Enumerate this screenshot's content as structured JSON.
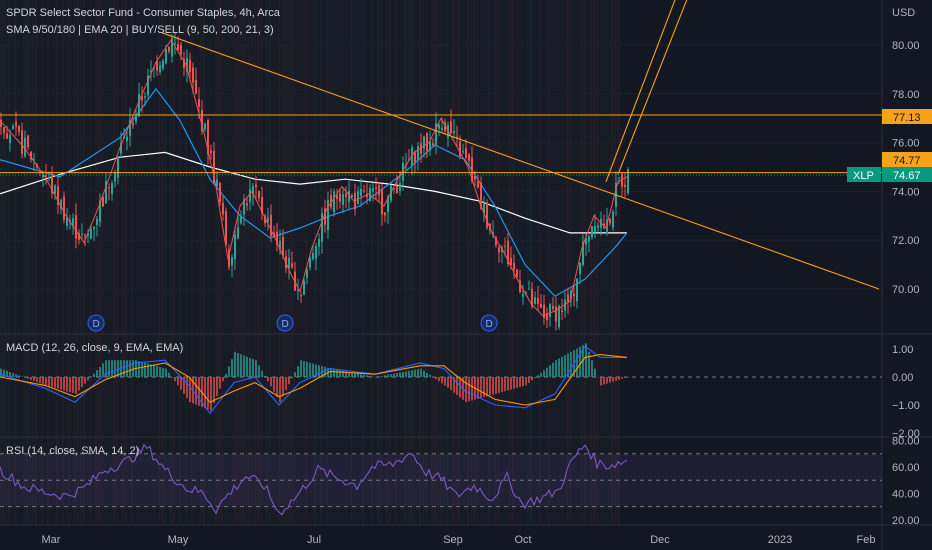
{
  "header": {
    "title": "SPDR Select Sector Fund - Consumer Staples, 4h, Arca",
    "indicators": "SMA 9/50/180 | EMA 20 | BUY/SELL (9, 50, 200, 21, 3)",
    "currency": "USD"
  },
  "price_pane": {
    "y_ticks": [
      "80.00",
      "78.00",
      "76.00",
      "74.00",
      "72.00",
      "70.00"
    ],
    "resistance_label": "77.13",
    "support_label": "74.77",
    "ticker_label": "XLP",
    "ticker_price": "74.67",
    "dividend_marker": "D"
  },
  "macd_pane": {
    "title": "MACD (12, 26, close, 9, EMA, EMA)",
    "y_ticks": [
      "1.00",
      "0.00",
      "−1.00",
      "−2.00"
    ]
  },
  "rsi_pane": {
    "title": "RSI (14, close, SMA, 14, 2)",
    "y_ticks": [
      "80.00",
      "60.00",
      "40.00",
      "20.00"
    ]
  },
  "x_axis": {
    "labels": [
      "Mar",
      "May",
      "Jul",
      "Sep",
      "Oct",
      "Dec",
      "2023",
      "Feb"
    ]
  },
  "colors": {
    "background": "#131722",
    "up_candle": "#26a69a",
    "down_candle": "#ef5350",
    "sma9": "#ef5350",
    "sma50": "#2196f3",
    "sma180": "#ffffff",
    "trendline": "#f7a21b",
    "macd_line": "#2962ff",
    "signal_line": "#ff9800",
    "rsi_line": "#7e57c2",
    "ticker_bg": "#089981"
  },
  "chart_data": {
    "type": "candlestick",
    "title": "SPDR Select Sector Fund - Consumer Staples, 4h, Arca",
    "ylabel": "USD",
    "ylim": [
      68.8,
      81.5
    ],
    "x_labels": [
      "Mar",
      "May",
      "Jul",
      "Sep",
      "Oct",
      "Dec",
      "2023",
      "Feb"
    ],
    "price_path": [
      [
        0,
        76.9
      ],
      [
        8,
        75.8
      ],
      [
        15,
        74.6
      ],
      [
        22,
        73.0
      ],
      [
        28,
        71.9
      ],
      [
        33,
        73.4
      ],
      [
        40,
        75.8
      ],
      [
        46,
        77.6
      ],
      [
        52,
        79.3
      ],
      [
        57,
        80.2
      ],
      [
        62,
        79.2
      ],
      [
        68,
        76.4
      ],
      [
        72,
        74.2
      ],
      [
        76,
        71.2
      ],
      [
        80,
        73.4
      ],
      [
        84,
        74.0
      ],
      [
        88,
        73.0
      ],
      [
        92,
        72.0
      ],
      [
        97,
        70.6
      ],
      [
        100,
        69.9
      ],
      [
        104,
        71.7
      ],
      [
        109,
        73.3
      ],
      [
        114,
        74.2
      ],
      [
        118,
        73.6
      ],
      [
        123,
        73.9
      ],
      [
        128,
        73.4
      ],
      [
        133,
        74.6
      ],
      [
        138,
        75.6
      ],
      [
        143,
        76.0
      ],
      [
        147,
        77.0
      ],
      [
        152,
        75.9
      ],
      [
        156,
        75.0
      ],
      [
        160,
        73.5
      ],
      [
        164,
        72.3
      ],
      [
        168,
        71.5
      ],
      [
        172,
        70.5
      ],
      [
        177,
        69.4
      ],
      [
        181,
        68.9
      ],
      [
        185,
        69.1
      ],
      [
        190,
        69.5
      ],
      [
        194,
        71.7
      ],
      [
        198,
        73.0
      ],
      [
        202,
        72.5
      ],
      [
        206,
        74.4
      ],
      [
        209,
        74.6
      ]
    ],
    "sma50_path": [
      [
        0,
        75.3
      ],
      [
        20,
        74.6
      ],
      [
        40,
        76.2
      ],
      [
        52,
        78.2
      ],
      [
        60,
        76.9
      ],
      [
        70,
        74.5
      ],
      [
        80,
        73.0
      ],
      [
        90,
        72.1
      ],
      [
        100,
        72.5
      ],
      [
        110,
        73.0
      ],
      [
        120,
        73.4
      ],
      [
        135,
        74.8
      ],
      [
        145,
        75.9
      ],
      [
        155,
        75.3
      ],
      [
        165,
        73.4
      ],
      [
        175,
        71.0
      ],
      [
        185,
        69.7
      ],
      [
        195,
        70.4
      ],
      [
        205,
        71.7
      ],
      [
        209,
        72.3
      ]
    ],
    "sma180_path": [
      [
        0,
        73.9
      ],
      [
        20,
        74.7
      ],
      [
        40,
        75.4
      ],
      [
        55,
        75.6
      ],
      [
        70,
        75.0
      ],
      [
        85,
        74.5
      ],
      [
        100,
        74.3
      ],
      [
        115,
        74.5
      ],
      [
        130,
        74.3
      ],
      [
        145,
        74.0
      ],
      [
        160,
        73.6
      ],
      [
        175,
        72.9
      ],
      [
        190,
        72.3
      ],
      [
        209,
        72.3
      ]
    ],
    "levels": {
      "resistance": 77.13,
      "support": 74.77,
      "last_price": 74.67
    },
    "trendlines": [
      {
        "name": "descending",
        "from": [
          54,
          80.5
        ],
        "to": [
          293,
          70.0
        ]
      },
      {
        "name": "channel-a",
        "from": [
          202,
          74.4
        ],
        "to": [
          227,
          82.5
        ]
      },
      {
        "name": "channel-b",
        "from": [
          206,
          74.7
        ],
        "to": [
          231,
          82.5
        ]
      }
    ],
    "dividend_markers_x": [
      32,
      95,
      163
    ],
    "macd": {
      "ylim": [
        -2.2,
        1.4
      ],
      "macd": [
        [
          0,
          0.1
        ],
        [
          15,
          -0.4
        ],
        [
          25,
          -0.9
        ],
        [
          35,
          0.1
        ],
        [
          45,
          0.5
        ],
        [
          55,
          0.6
        ],
        [
          63,
          -0.3
        ],
        [
          70,
          -1.3
        ],
        [
          78,
          -0.2
        ],
        [
          85,
          0.0
        ],
        [
          93,
          -1.0
        ],
        [
          100,
          -0.2
        ],
        [
          110,
          0.3
        ],
        [
          125,
          0.1
        ],
        [
          140,
          0.5
        ],
        [
          148,
          0.3
        ],
        [
          155,
          -0.5
        ],
        [
          165,
          -1.0
        ],
        [
          175,
          -1.1
        ],
        [
          185,
          -0.6
        ],
        [
          195,
          1.1
        ],
        [
          200,
          0.7
        ],
        [
          209,
          0.7
        ]
      ],
      "signal": [
        [
          0,
          0.0
        ],
        [
          15,
          -0.3
        ],
        [
          25,
          -0.7
        ],
        [
          35,
          -0.1
        ],
        [
          45,
          0.3
        ],
        [
          55,
          0.5
        ],
        [
          63,
          0.0
        ],
        [
          70,
          -0.9
        ],
        [
          78,
          -0.5
        ],
        [
          85,
          -0.2
        ],
        [
          93,
          -0.7
        ],
        [
          100,
          -0.4
        ],
        [
          110,
          0.2
        ],
        [
          125,
          0.1
        ],
        [
          140,
          0.4
        ],
        [
          148,
          0.4
        ],
        [
          155,
          -0.2
        ],
        [
          165,
          -0.8
        ],
        [
          175,
          -1.0
        ],
        [
          185,
          -0.8
        ],
        [
          195,
          0.7
        ],
        [
          200,
          0.8
        ],
        [
          209,
          0.7
        ]
      ]
    },
    "rsi": {
      "ylim": [
        16,
        82
      ],
      "values": [
        [
          0,
          58
        ],
        [
          8,
          45
        ],
        [
          15,
          41
        ],
        [
          22,
          38
        ],
        [
          28,
          44
        ],
        [
          35,
          58
        ],
        [
          42,
          64
        ],
        [
          49,
          75
        ],
        [
          55,
          58
        ],
        [
          62,
          44
        ],
        [
          68,
          40
        ],
        [
          72,
          28
        ],
        [
          76,
          39
        ],
        [
          82,
          53
        ],
        [
          88,
          46
        ],
        [
          93,
          25
        ],
        [
          99,
          38
        ],
        [
          106,
          58
        ],
        [
          112,
          52
        ],
        [
          119,
          46
        ],
        [
          124,
          60
        ],
        [
          131,
          62
        ],
        [
          137,
          71
        ],
        [
          142,
          56
        ],
        [
          147,
          51
        ],
        [
          152,
          38
        ],
        [
          158,
          46
        ],
        [
          164,
          36
        ],
        [
          169,
          52
        ],
        [
          174,
          32
        ],
        [
          180,
          36
        ],
        [
          186,
          42
        ],
        [
          191,
          66
        ],
        [
          195,
          77
        ],
        [
          199,
          63
        ],
        [
          203,
          61
        ],
        [
          209,
          65
        ]
      ],
      "bands": [
        70,
        50,
        30
      ]
    }
  }
}
